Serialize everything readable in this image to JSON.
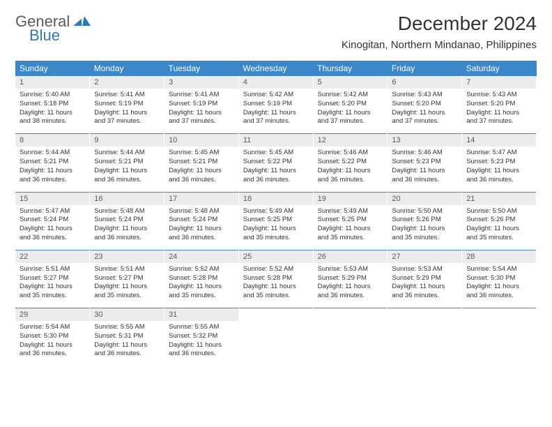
{
  "brand": {
    "word1": "General",
    "word2": "Blue",
    "mark_color": "#2f78b7",
    "text_gray": "#5a5a5a"
  },
  "title": "December 2024",
  "location": "Kinogitan, Northern Mindanao, Philippines",
  "theme": {
    "header_bg": "#3b87c8",
    "header_fg": "#ffffff",
    "daynum_bg": "#ececec",
    "body_bg": "#ffffff",
    "rule_color": "#3b87c8",
    "title_fontsize": 28,
    "location_fontsize": 15,
    "dayhead_fontsize": 12,
    "cell_fontsize": 9.5
  },
  "day_headers": [
    "Sunday",
    "Monday",
    "Tuesday",
    "Wednesday",
    "Thursday",
    "Friday",
    "Saturday"
  ],
  "weeks": [
    [
      {
        "n": "1",
        "sr": "5:40 AM",
        "ss": "5:18 PM",
        "dl": "11 hours and 38 minutes."
      },
      {
        "n": "2",
        "sr": "5:41 AM",
        "ss": "5:19 PM",
        "dl": "11 hours and 37 minutes."
      },
      {
        "n": "3",
        "sr": "5:41 AM",
        "ss": "5:19 PM",
        "dl": "11 hours and 37 minutes."
      },
      {
        "n": "4",
        "sr": "5:42 AM",
        "ss": "5:19 PM",
        "dl": "11 hours and 37 minutes."
      },
      {
        "n": "5",
        "sr": "5:42 AM",
        "ss": "5:20 PM",
        "dl": "11 hours and 37 minutes."
      },
      {
        "n": "6",
        "sr": "5:43 AM",
        "ss": "5:20 PM",
        "dl": "11 hours and 37 minutes."
      },
      {
        "n": "7",
        "sr": "5:43 AM",
        "ss": "5:20 PM",
        "dl": "11 hours and 37 minutes."
      }
    ],
    [
      {
        "n": "8",
        "sr": "5:44 AM",
        "ss": "5:21 PM",
        "dl": "11 hours and 36 minutes."
      },
      {
        "n": "9",
        "sr": "5:44 AM",
        "ss": "5:21 PM",
        "dl": "11 hours and 36 minutes."
      },
      {
        "n": "10",
        "sr": "5:45 AM",
        "ss": "5:21 PM",
        "dl": "11 hours and 36 minutes."
      },
      {
        "n": "11",
        "sr": "5:45 AM",
        "ss": "5:22 PM",
        "dl": "11 hours and 36 minutes."
      },
      {
        "n": "12",
        "sr": "5:46 AM",
        "ss": "5:22 PM",
        "dl": "11 hours and 36 minutes."
      },
      {
        "n": "13",
        "sr": "5:46 AM",
        "ss": "5:23 PM",
        "dl": "11 hours and 36 minutes."
      },
      {
        "n": "14",
        "sr": "5:47 AM",
        "ss": "5:23 PM",
        "dl": "11 hours and 36 minutes."
      }
    ],
    [
      {
        "n": "15",
        "sr": "5:47 AM",
        "ss": "5:24 PM",
        "dl": "11 hours and 36 minutes."
      },
      {
        "n": "16",
        "sr": "5:48 AM",
        "ss": "5:24 PM",
        "dl": "11 hours and 36 minutes."
      },
      {
        "n": "17",
        "sr": "5:48 AM",
        "ss": "5:24 PM",
        "dl": "11 hours and 36 minutes."
      },
      {
        "n": "18",
        "sr": "5:49 AM",
        "ss": "5:25 PM",
        "dl": "11 hours and 35 minutes."
      },
      {
        "n": "19",
        "sr": "5:49 AM",
        "ss": "5:25 PM",
        "dl": "11 hours and 35 minutes."
      },
      {
        "n": "20",
        "sr": "5:50 AM",
        "ss": "5:26 PM",
        "dl": "11 hours and 35 minutes."
      },
      {
        "n": "21",
        "sr": "5:50 AM",
        "ss": "5:26 PM",
        "dl": "11 hours and 35 minutes."
      }
    ],
    [
      {
        "n": "22",
        "sr": "5:51 AM",
        "ss": "5:27 PM",
        "dl": "11 hours and 35 minutes."
      },
      {
        "n": "23",
        "sr": "5:51 AM",
        "ss": "5:27 PM",
        "dl": "11 hours and 35 minutes."
      },
      {
        "n": "24",
        "sr": "5:52 AM",
        "ss": "5:28 PM",
        "dl": "11 hours and 35 minutes."
      },
      {
        "n": "25",
        "sr": "5:52 AM",
        "ss": "5:28 PM",
        "dl": "11 hours and 35 minutes."
      },
      {
        "n": "26",
        "sr": "5:53 AM",
        "ss": "5:29 PM",
        "dl": "11 hours and 36 minutes."
      },
      {
        "n": "27",
        "sr": "5:53 AM",
        "ss": "5:29 PM",
        "dl": "11 hours and 36 minutes."
      },
      {
        "n": "28",
        "sr": "5:54 AM",
        "ss": "5:30 PM",
        "dl": "11 hours and 36 minutes."
      }
    ],
    [
      {
        "n": "29",
        "sr": "5:54 AM",
        "ss": "5:30 PM",
        "dl": "11 hours and 36 minutes."
      },
      {
        "n": "30",
        "sr": "5:55 AM",
        "ss": "5:31 PM",
        "dl": "11 hours and 36 minutes."
      },
      {
        "n": "31",
        "sr": "5:55 AM",
        "ss": "5:32 PM",
        "dl": "11 hours and 36 minutes."
      },
      null,
      null,
      null,
      null
    ]
  ],
  "labels": {
    "sunrise": "Sunrise:",
    "sunset": "Sunset:",
    "daylight": "Daylight:"
  }
}
